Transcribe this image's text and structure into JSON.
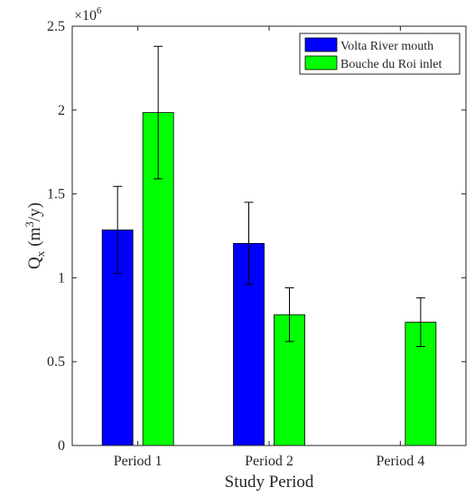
{
  "chart_data": {
    "type": "bar",
    "categories": [
      "Period 1",
      "Period 2",
      "Period 4"
    ],
    "series": [
      {
        "name": "Volta River mouth",
        "color": "#0000ff",
        "values": [
          1.285,
          1.205,
          0.0
        ],
        "error": [
          0.26,
          0.245,
          0.0
        ]
      },
      {
        "name": "Bouche du Roi inlet",
        "color": "#00ff00",
        "values": [
          1.985,
          0.78,
          0.735
        ],
        "error": [
          0.395,
          0.16,
          0.145
        ]
      }
    ],
    "ylim": [
      0,
      2.5
    ],
    "yticks": [
      "0",
      "0.5",
      "1",
      "1.5",
      "2",
      "2.5"
    ],
    "yscale_label": "×10",
    "yscale_exponent": "6",
    "ylabel_main": "Q",
    "ylabel_sub": "x",
    "ylabel_unit_pre": "(m",
    "ylabel_unit_sup": "3",
    "ylabel_unit_post": "/y)",
    "xlabel": "Study Period",
    "legend_position": "top-right",
    "grid": false
  }
}
